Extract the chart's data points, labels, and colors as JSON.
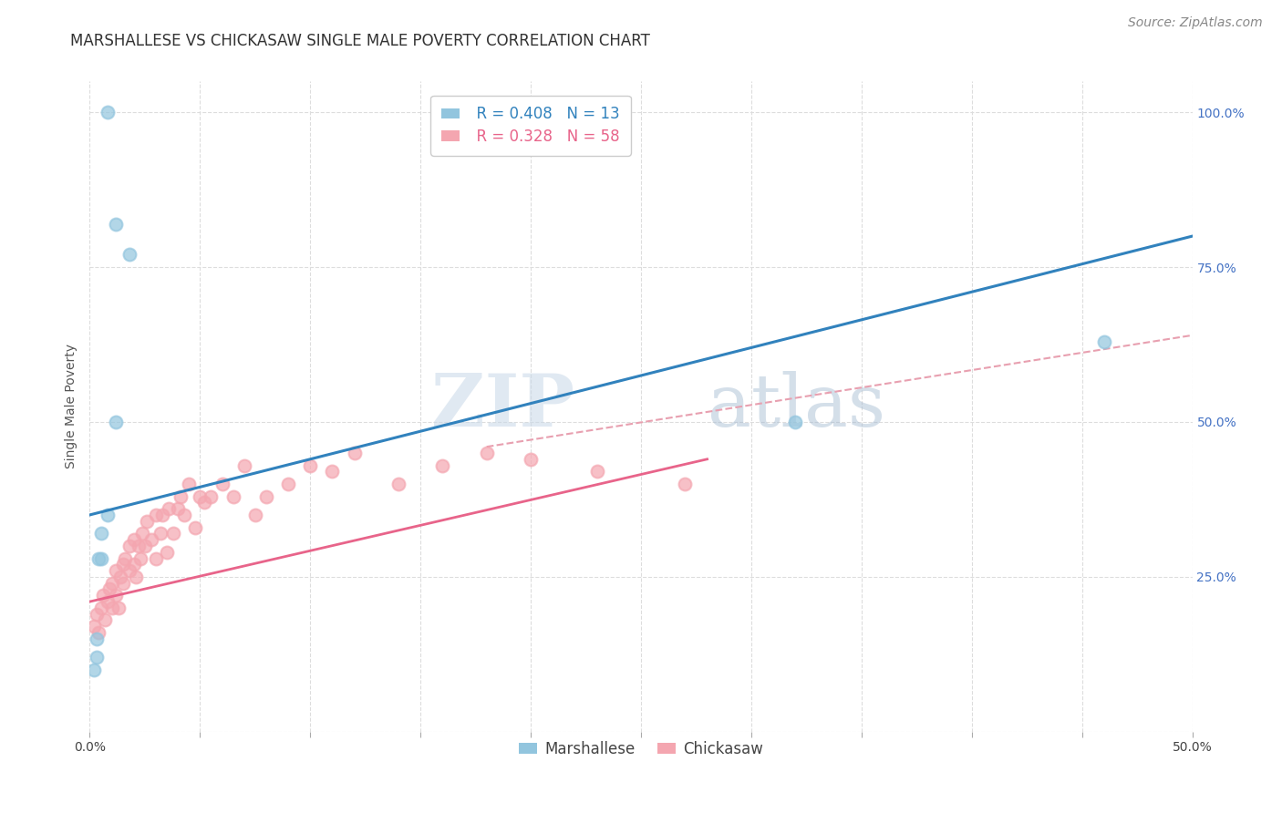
{
  "title": "MARSHALLESE VS CHICKASAW SINGLE MALE POVERTY CORRELATION CHART",
  "source": "Source: ZipAtlas.com",
  "ylabel": "Single Male Poverty",
  "x_min": 0.0,
  "x_max": 0.5,
  "y_min": 0.0,
  "y_max": 1.05,
  "legend_R": [
    "0.408",
    "0.328"
  ],
  "legend_N": [
    "13",
    "58"
  ],
  "marshallese_color": "#92c5de",
  "chickasaw_color": "#f4a6b0",
  "trendline_marshallese_color": "#3182bd",
  "trendline_chickasaw_color": "#e8648a",
  "trendline_dashed_color": "#e8a0b0",
  "watermark_zip": "ZIP",
  "watermark_atlas": "atlas",
  "marshallese_x": [
    0.008,
    0.012,
    0.018,
    0.012,
    0.008,
    0.005,
    0.005,
    0.004,
    0.003,
    0.003,
    0.002,
    0.32,
    0.46
  ],
  "marshallese_y": [
    1.0,
    0.82,
    0.77,
    0.5,
    0.35,
    0.32,
    0.28,
    0.28,
    0.15,
    0.12,
    0.1,
    0.5,
    0.63
  ],
  "chickasaw_x": [
    0.002,
    0.003,
    0.004,
    0.005,
    0.006,
    0.007,
    0.008,
    0.009,
    0.01,
    0.01,
    0.012,
    0.012,
    0.013,
    0.014,
    0.015,
    0.015,
    0.016,
    0.018,
    0.018,
    0.02,
    0.02,
    0.021,
    0.022,
    0.023,
    0.024,
    0.025,
    0.026,
    0.028,
    0.03,
    0.03,
    0.032,
    0.033,
    0.035,
    0.036,
    0.038,
    0.04,
    0.041,
    0.043,
    0.045,
    0.048,
    0.05,
    0.052,
    0.055,
    0.06,
    0.065,
    0.07,
    0.075,
    0.08,
    0.09,
    0.1,
    0.11,
    0.12,
    0.14,
    0.16,
    0.18,
    0.2,
    0.23,
    0.27
  ],
  "chickasaw_y": [
    0.17,
    0.19,
    0.16,
    0.2,
    0.22,
    0.18,
    0.21,
    0.23,
    0.2,
    0.24,
    0.22,
    0.26,
    0.2,
    0.25,
    0.24,
    0.27,
    0.28,
    0.26,
    0.3,
    0.27,
    0.31,
    0.25,
    0.3,
    0.28,
    0.32,
    0.3,
    0.34,
    0.31,
    0.28,
    0.35,
    0.32,
    0.35,
    0.29,
    0.36,
    0.32,
    0.36,
    0.38,
    0.35,
    0.4,
    0.33,
    0.38,
    0.37,
    0.38,
    0.4,
    0.38,
    0.43,
    0.35,
    0.38,
    0.4,
    0.43,
    0.42,
    0.45,
    0.4,
    0.43,
    0.45,
    0.44,
    0.42,
    0.4
  ],
  "grid_color": "#dddddd",
  "background_color": "#ffffff",
  "title_fontsize": 12,
  "axis_label_fontsize": 10,
  "tick_fontsize": 10,
  "legend_fontsize": 12,
  "source_fontsize": 10,
  "trendline_blue_x0": 0.0,
  "trendline_blue_y0": 0.35,
  "trendline_blue_x1": 0.5,
  "trendline_blue_y1": 0.8,
  "trendline_pink_x0": 0.0,
  "trendline_pink_y0": 0.21,
  "trendline_pink_x1": 0.28,
  "trendline_pink_y1": 0.44,
  "trendline_dashed_x0": 0.18,
  "trendline_dashed_y0": 0.46,
  "trendline_dashed_x1": 0.5,
  "trendline_dashed_y1": 0.64
}
